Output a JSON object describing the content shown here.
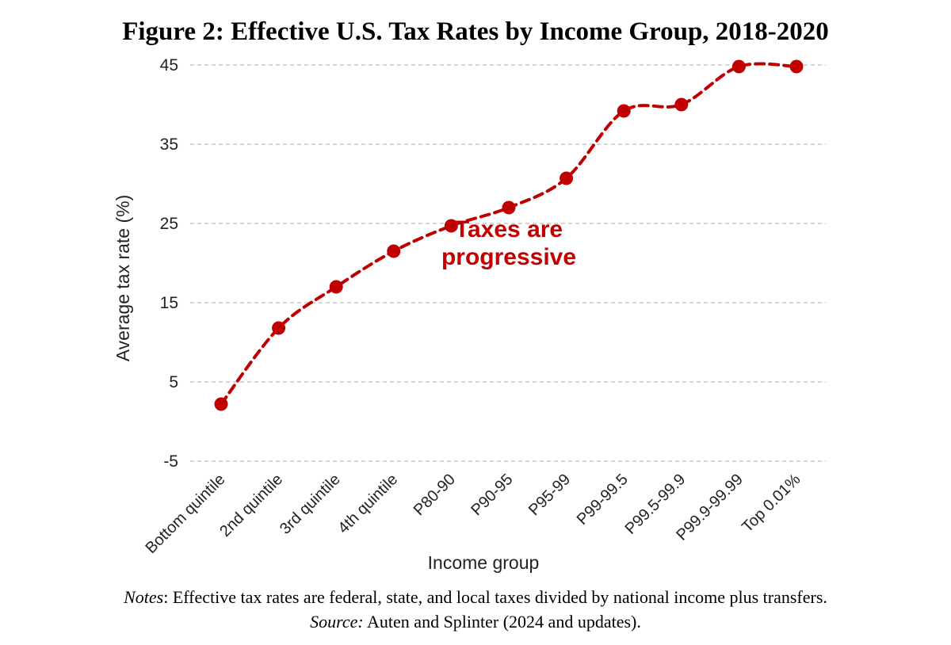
{
  "figure": {
    "title": "Figure 2: Effective U.S. Tax Rates by Income Group, 2018-2020",
    "notes_label": "Notes",
    "notes_text": ": Effective tax rates are federal, state, and local taxes divided by national income plus transfers.",
    "source_label": "Source:",
    "source_text": " Auten and Splinter (2024 and updates)."
  },
  "chart_data": {
    "type": "line",
    "title": "Figure 2: Effective U.S. Tax Rates by Income Group, 2018-2020",
    "xlabel": "Income group",
    "ylabel": "Average tax rate (%)",
    "ylim": [
      -5,
      45
    ],
    "yticks": [
      -5,
      5,
      15,
      25,
      35,
      45
    ],
    "grid": "horizontal-dashed",
    "categories": [
      "Bottom quintile",
      "2nd quintile",
      "3rd quintile",
      "4th quintile",
      "P80-90",
      "P90-95",
      "P95-99",
      "P99-99.5",
      "P99.5-99.9",
      "P99.9-99.99",
      "Top 0.01%"
    ],
    "series": [
      {
        "name": "Average tax rate",
        "values": [
          2.2,
          11.8,
          17.0,
          21.5,
          24.7,
          27.0,
          30.7,
          39.2,
          40.0,
          44.8,
          44.8
        ]
      }
    ],
    "annotation": {
      "text_line1": "Taxes are",
      "text_line2": "progressive",
      "at_category_index": 5,
      "at_value": 22.5
    },
    "color": "#c00000"
  }
}
